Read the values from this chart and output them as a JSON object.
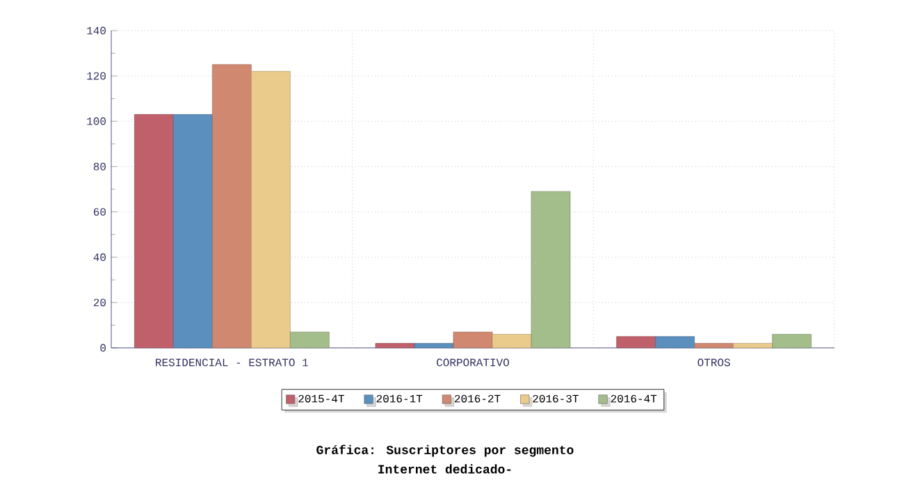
{
  "chart_data": {
    "type": "bar",
    "title": "Gráfica: Suscriptores por segmento",
    "subtitle": "Internet dedicado-",
    "categories": [
      "RESIDENCIAL - ESTRATO 1",
      "CORPORATIVO",
      "OTROS"
    ],
    "series": [
      {
        "name": "2015-4T",
        "color": "#c0606a",
        "values": [
          103,
          2,
          5
        ]
      },
      {
        "name": "2016-1T",
        "color": "#5b8fbe",
        "values": [
          103,
          2,
          5
        ]
      },
      {
        "name": "2016-2T",
        "color": "#d08870",
        "values": [
          125,
          7,
          2
        ]
      },
      {
        "name": "2016-3T",
        "color": "#eacb8c",
        "values": [
          122,
          6,
          2
        ]
      },
      {
        "name": "2016-4T",
        "color": "#a3bd8b",
        "values": [
          7,
          69,
          6
        ]
      }
    ],
    "ylim": [
      0,
      140
    ],
    "yticks": [
      0,
      20,
      40,
      60,
      80,
      100,
      120,
      140
    ],
    "grid": true,
    "legend": "bottom"
  }
}
